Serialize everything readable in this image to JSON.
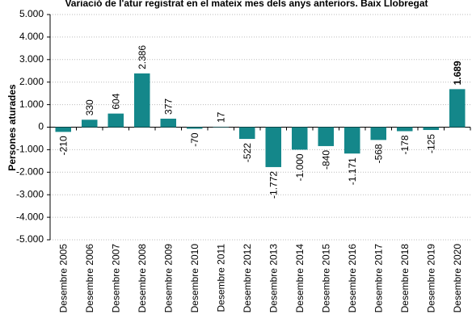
{
  "chart_data": {
    "type": "bar",
    "title": "Variació de l'atur registrat en el mateix mes dels anys anteriors. Baix Llobregat",
    "y_label": "Persones aturades",
    "categories": [
      "Desembre 2005",
      "Desembre 2006",
      "Desembre 2007",
      "Desembre 2008",
      "Desembre 2009",
      "Desembre 2010",
      "Desembre 2011",
      "Desembre 2012",
      "Desembre 2013",
      "Desembre 2014",
      "Desembre 2015",
      "Desembre 2016",
      "Desembre 2017",
      "Desembre 2018",
      "Desembre 2019",
      "Desembre 2020"
    ],
    "values": [
      -210,
      330,
      604,
      2386,
      377,
      -70,
      17,
      -522,
      -1772,
      -1000,
      -840,
      -1171,
      -568,
      -178,
      -125,
      1689
    ],
    "value_labels": [
      "-210",
      "330",
      "604",
      "2.386",
      "377",
      "-70",
      "17",
      "-522",
      "-1.772",
      "-1.000",
      "-840",
      "-1.171",
      "-568",
      "-178",
      "-125",
      "1.689"
    ],
    "color": "#14878a",
    "ylim": [
      -5000,
      5000
    ],
    "yticks": [
      {
        "value": -5000,
        "label": "-5.000"
      },
      {
        "value": -4000,
        "label": "-4.000"
      },
      {
        "value": -3000,
        "label": "-3.000"
      },
      {
        "value": -2000,
        "label": "-2.000"
      },
      {
        "value": -1000,
        "label": "-1.000"
      },
      0,
      {
        "value": 1000,
        "label": "1.000"
      },
      {
        "value": 2000,
        "label": "2.000"
      },
      {
        "value": 3000,
        "label": "3.000"
      },
      {
        "value": 4000,
        "label": "4.000"
      },
      {
        "value": 5000,
        "label": "5.000"
      }
    ],
    "grid": true
  }
}
